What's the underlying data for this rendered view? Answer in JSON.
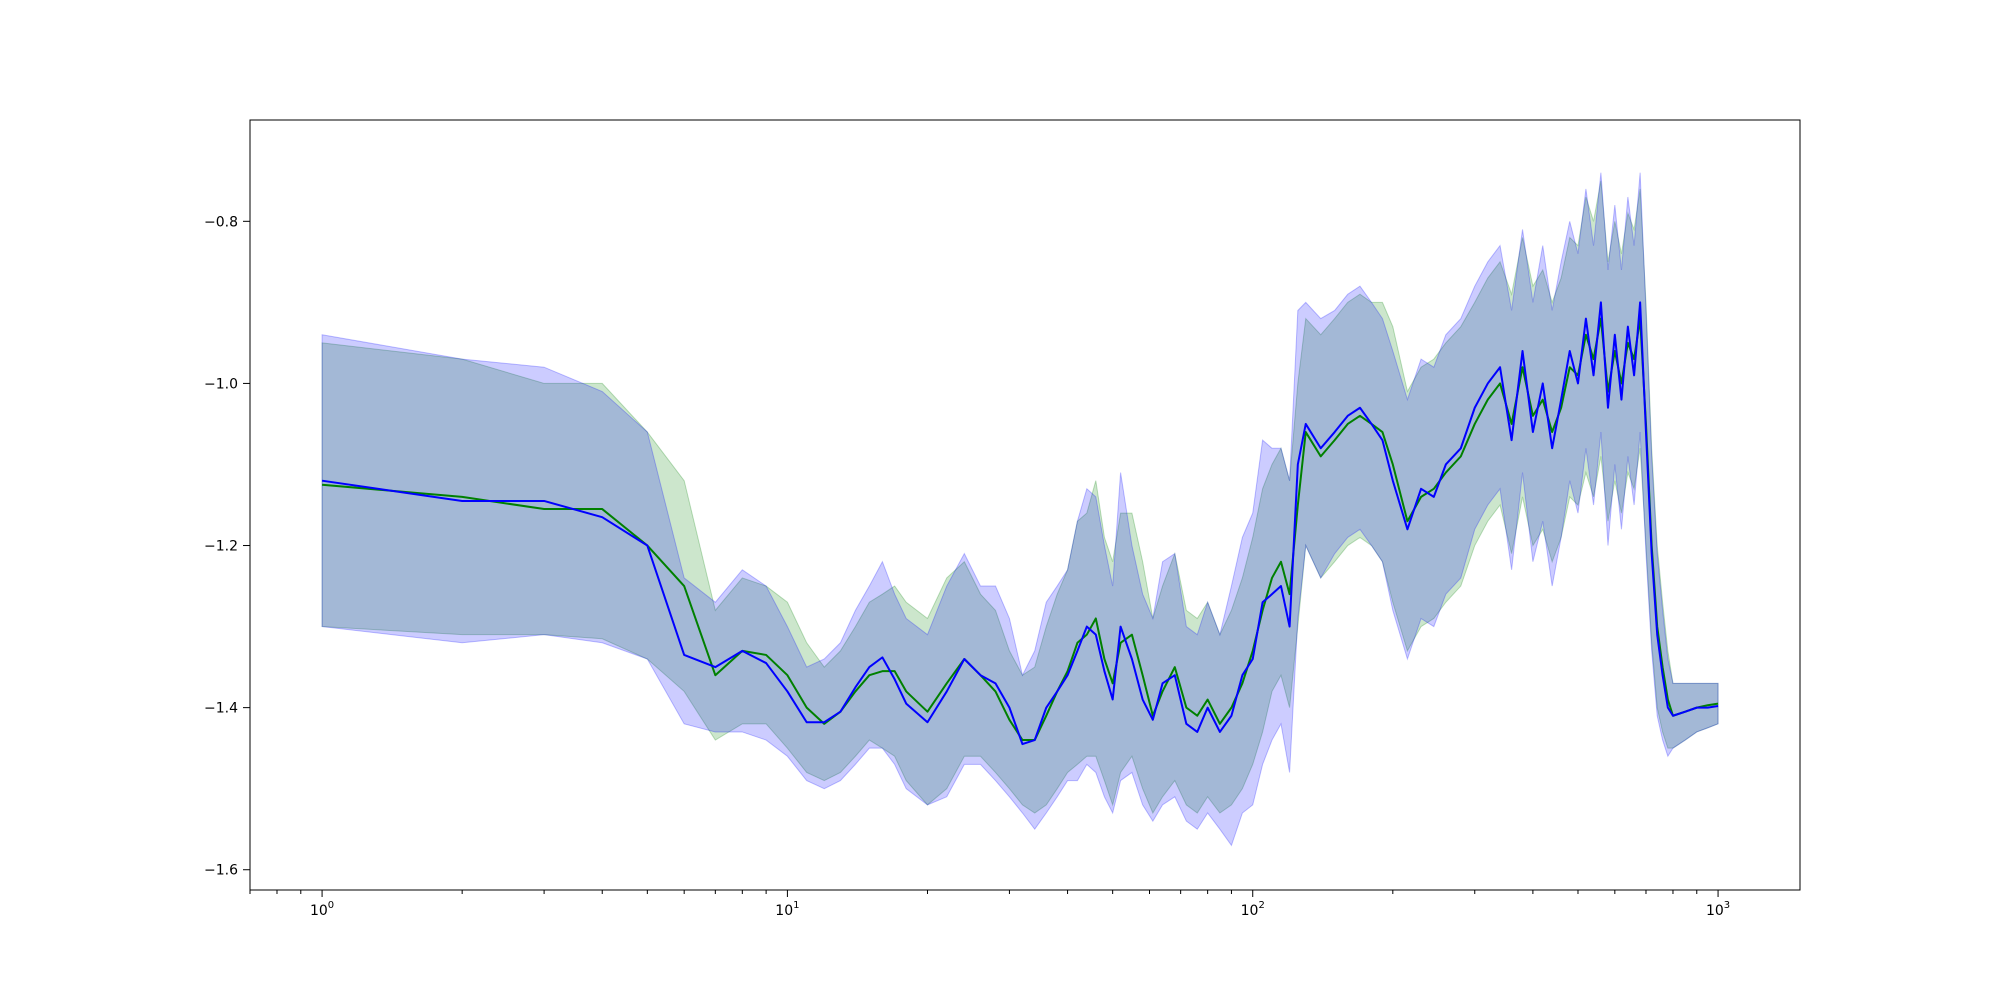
{
  "chart_data": {
    "type": "line",
    "title": "",
    "xlabel": "",
    "ylabel": "",
    "x_scale": "log",
    "xlim": [
      0.7,
      1500
    ],
    "ylim": [
      -1.625,
      -0.675
    ],
    "grid": false,
    "x_ticks": [
      {
        "value": 1,
        "base": "10",
        "exp": "0"
      },
      {
        "value": 10,
        "base": "10",
        "exp": "1"
      },
      {
        "value": 100,
        "base": "10",
        "exp": "2"
      },
      {
        "value": 1000,
        "base": "10",
        "exp": "3"
      }
    ],
    "y_ticks": [
      {
        "value": -0.8,
        "label": "−0.8"
      },
      {
        "value": -1.0,
        "label": "−1.0"
      },
      {
        "value": -1.2,
        "label": "−1.2"
      },
      {
        "value": -1.4,
        "label": "−1.4"
      },
      {
        "value": -1.6,
        "label": "−1.6"
      }
    ],
    "x": [
      1,
      2,
      3,
      4,
      5,
      6,
      7,
      8,
      9,
      10,
      11,
      12,
      13,
      14,
      15,
      16,
      17,
      18,
      20,
      22,
      24,
      26,
      28,
      30,
      32,
      34,
      36,
      38,
      40,
      42,
      44,
      46,
      48,
      50,
      52,
      55,
      58,
      61,
      64,
      68,
      72,
      76,
      80,
      85,
      90,
      95,
      100,
      105,
      110,
      115,
      120,
      125,
      130,
      140,
      150,
      160,
      170,
      180,
      190,
      200,
      215,
      230,
      245,
      260,
      280,
      300,
      320,
      340,
      360,
      380,
      400,
      420,
      440,
      460,
      480,
      500,
      520,
      540,
      560,
      580,
      600,
      620,
      640,
      660,
      680,
      700,
      720,
      740,
      760,
      780,
      800,
      850,
      900,
      950,
      1000
    ],
    "series": [
      {
        "color": "#008000",
        "band_color": "#008000",
        "values": [
          -1.125,
          -1.14,
          -1.155,
          -1.155,
          -1.2,
          -1.25,
          -1.36,
          -1.33,
          -1.335,
          -1.36,
          -1.4,
          -1.42,
          -1.405,
          -1.38,
          -1.36,
          -1.355,
          -1.355,
          -1.38,
          -1.405,
          -1.37,
          -1.34,
          -1.36,
          -1.38,
          -1.415,
          -1.44,
          -1.44,
          -1.41,
          -1.38,
          -1.355,
          -1.32,
          -1.31,
          -1.29,
          -1.34,
          -1.37,
          -1.32,
          -1.31,
          -1.36,
          -1.41,
          -1.38,
          -1.35,
          -1.4,
          -1.41,
          -1.39,
          -1.42,
          -1.4,
          -1.37,
          -1.33,
          -1.28,
          -1.24,
          -1.22,
          -1.26,
          -1.15,
          -1.06,
          -1.09,
          -1.07,
          -1.05,
          -1.04,
          -1.05,
          -1.06,
          -1.1,
          -1.17,
          -1.14,
          -1.13,
          -1.11,
          -1.09,
          -1.05,
          -1.02,
          -1.0,
          -1.05,
          -0.98,
          -1.04,
          -1.02,
          -1.06,
          -1.03,
          -0.98,
          -0.99,
          -0.94,
          -0.97,
          -0.92,
          -1.01,
          -0.96,
          -1.0,
          -0.95,
          -0.97,
          -0.92,
          -1.05,
          -1.2,
          -1.3,
          -1.35,
          -1.39,
          -1.41,
          -1.405,
          -1.4,
          -1.397,
          -1.395
        ],
        "lower": [
          -1.3,
          -1.31,
          -1.31,
          -1.315,
          -1.34,
          -1.38,
          -1.44,
          -1.42,
          -1.42,
          -1.45,
          -1.48,
          -1.49,
          -1.48,
          -1.46,
          -1.44,
          -1.45,
          -1.46,
          -1.49,
          -1.52,
          -1.5,
          -1.46,
          -1.46,
          -1.48,
          -1.5,
          -1.52,
          -1.53,
          -1.52,
          -1.5,
          -1.48,
          -1.47,
          -1.46,
          -1.46,
          -1.49,
          -1.52,
          -1.48,
          -1.46,
          -1.5,
          -1.53,
          -1.51,
          -1.49,
          -1.52,
          -1.53,
          -1.51,
          -1.53,
          -1.52,
          -1.5,
          -1.47,
          -1.43,
          -1.38,
          -1.36,
          -1.4,
          -1.3,
          -1.2,
          -1.24,
          -1.22,
          -1.2,
          -1.19,
          -1.2,
          -1.22,
          -1.27,
          -1.33,
          -1.3,
          -1.29,
          -1.27,
          -1.25,
          -1.2,
          -1.17,
          -1.15,
          -1.21,
          -1.14,
          -1.2,
          -1.18,
          -1.22,
          -1.19,
          -1.14,
          -1.15,
          -1.11,
          -1.14,
          -1.09,
          -1.17,
          -1.12,
          -1.16,
          -1.11,
          -1.13,
          -1.08,
          -1.2,
          -1.32,
          -1.4,
          -1.43,
          -1.45,
          -1.45,
          -1.44,
          -1.43,
          -1.425,
          -1.42
        ],
        "upper": [
          -0.95,
          -0.97,
          -1.0,
          -1.0,
          -1.06,
          -1.12,
          -1.28,
          -1.24,
          -1.25,
          -1.27,
          -1.32,
          -1.35,
          -1.33,
          -1.3,
          -1.27,
          -1.26,
          -1.25,
          -1.27,
          -1.29,
          -1.24,
          -1.22,
          -1.26,
          -1.28,
          -1.33,
          -1.36,
          -1.35,
          -1.3,
          -1.26,
          -1.23,
          -1.17,
          -1.16,
          -1.12,
          -1.19,
          -1.22,
          -1.16,
          -1.16,
          -1.22,
          -1.29,
          -1.25,
          -1.21,
          -1.28,
          -1.29,
          -1.27,
          -1.31,
          -1.28,
          -1.24,
          -1.19,
          -1.13,
          -1.1,
          -1.08,
          -1.12,
          -1.0,
          -0.92,
          -0.94,
          -0.92,
          -0.9,
          -0.89,
          -0.9,
          -0.9,
          -0.93,
          -1.01,
          -0.98,
          -0.97,
          -0.95,
          -0.93,
          -0.9,
          -0.87,
          -0.85,
          -0.89,
          -0.82,
          -0.88,
          -0.86,
          -0.9,
          -0.87,
          -0.82,
          -0.83,
          -0.77,
          -0.8,
          -0.75,
          -0.85,
          -0.8,
          -0.84,
          -0.79,
          -0.81,
          -0.76,
          -0.9,
          -1.08,
          -1.2,
          -1.27,
          -1.33,
          -1.37,
          -1.37,
          -1.37,
          -1.37,
          -1.37
        ]
      },
      {
        "color": "#0000ff",
        "band_color": "#0000ff",
        "values": [
          -1.12,
          -1.145,
          -1.145,
          -1.165,
          -1.2,
          -1.335,
          -1.35,
          -1.33,
          -1.345,
          -1.38,
          -1.418,
          -1.418,
          -1.405,
          -1.375,
          -1.35,
          -1.338,
          -1.365,
          -1.395,
          -1.418,
          -1.38,
          -1.34,
          -1.36,
          -1.37,
          -1.4,
          -1.445,
          -1.44,
          -1.4,
          -1.38,
          -1.36,
          -1.33,
          -1.3,
          -1.31,
          -1.355,
          -1.39,
          -1.3,
          -1.34,
          -1.39,
          -1.415,
          -1.37,
          -1.36,
          -1.42,
          -1.43,
          -1.4,
          -1.43,
          -1.41,
          -1.36,
          -1.34,
          -1.27,
          -1.26,
          -1.25,
          -1.3,
          -1.1,
          -1.05,
          -1.08,
          -1.06,
          -1.04,
          -1.03,
          -1.05,
          -1.07,
          -1.12,
          -1.18,
          -1.13,
          -1.14,
          -1.1,
          -1.08,
          -1.03,
          -1.0,
          -0.98,
          -1.07,
          -0.96,
          -1.06,
          -1.0,
          -1.08,
          -1.02,
          -0.96,
          -1.0,
          -0.92,
          -0.99,
          -0.9,
          -1.03,
          -0.94,
          -1.02,
          -0.93,
          -0.99,
          -0.9,
          -1.06,
          -1.21,
          -1.31,
          -1.36,
          -1.4,
          -1.41,
          -1.405,
          -1.4,
          -1.4,
          -1.398
        ],
        "lower": [
          -1.3,
          -1.32,
          -1.31,
          -1.32,
          -1.34,
          -1.42,
          -1.43,
          -1.43,
          -1.44,
          -1.46,
          -1.49,
          -1.5,
          -1.49,
          -1.47,
          -1.45,
          -1.45,
          -1.47,
          -1.5,
          -1.52,
          -1.51,
          -1.47,
          -1.47,
          -1.49,
          -1.51,
          -1.53,
          -1.55,
          -1.53,
          -1.51,
          -1.49,
          -1.49,
          -1.47,
          -1.48,
          -1.51,
          -1.53,
          -1.49,
          -1.48,
          -1.52,
          -1.54,
          -1.52,
          -1.51,
          -1.54,
          -1.55,
          -1.53,
          -1.55,
          -1.57,
          -1.53,
          -1.52,
          -1.47,
          -1.44,
          -1.42,
          -1.48,
          -1.29,
          -1.2,
          -1.24,
          -1.21,
          -1.19,
          -1.18,
          -1.2,
          -1.22,
          -1.28,
          -1.34,
          -1.29,
          -1.3,
          -1.26,
          -1.24,
          -1.18,
          -1.15,
          -1.13,
          -1.23,
          -1.11,
          -1.22,
          -1.17,
          -1.25,
          -1.19,
          -1.12,
          -1.16,
          -1.08,
          -1.15,
          -1.06,
          -1.2,
          -1.1,
          -1.18,
          -1.09,
          -1.15,
          -1.06,
          -1.21,
          -1.33,
          -1.41,
          -1.44,
          -1.46,
          -1.45,
          -1.44,
          -1.43,
          -1.425,
          -1.42
        ],
        "upper": [
          -0.94,
          -0.97,
          -0.98,
          -1.01,
          -1.06,
          -1.24,
          -1.27,
          -1.23,
          -1.25,
          -1.3,
          -1.35,
          -1.34,
          -1.32,
          -1.28,
          -1.25,
          -1.22,
          -1.26,
          -1.29,
          -1.31,
          -1.25,
          -1.21,
          -1.25,
          -1.25,
          -1.29,
          -1.36,
          -1.33,
          -1.27,
          -1.25,
          -1.23,
          -1.17,
          -1.13,
          -1.14,
          -1.2,
          -1.25,
          -1.11,
          -1.2,
          -1.26,
          -1.29,
          -1.22,
          -1.21,
          -1.3,
          -1.31,
          -1.27,
          -1.31,
          -1.25,
          -1.19,
          -1.16,
          -1.07,
          -1.08,
          -1.08,
          -1.12,
          -0.91,
          -0.9,
          -0.92,
          -0.91,
          -0.89,
          -0.88,
          -0.9,
          -0.92,
          -0.96,
          -1.02,
          -0.97,
          -0.98,
          -0.94,
          -0.92,
          -0.88,
          -0.85,
          -0.83,
          -0.91,
          -0.81,
          -0.9,
          -0.83,
          -0.91,
          -0.85,
          -0.8,
          -0.84,
          -0.76,
          -0.83,
          -0.74,
          -0.86,
          -0.78,
          -0.86,
          -0.77,
          -0.83,
          -0.74,
          -0.91,
          -1.09,
          -1.21,
          -1.28,
          -1.34,
          -1.37,
          -1.37,
          -1.37,
          -1.37,
          -1.37
        ]
      }
    ]
  }
}
